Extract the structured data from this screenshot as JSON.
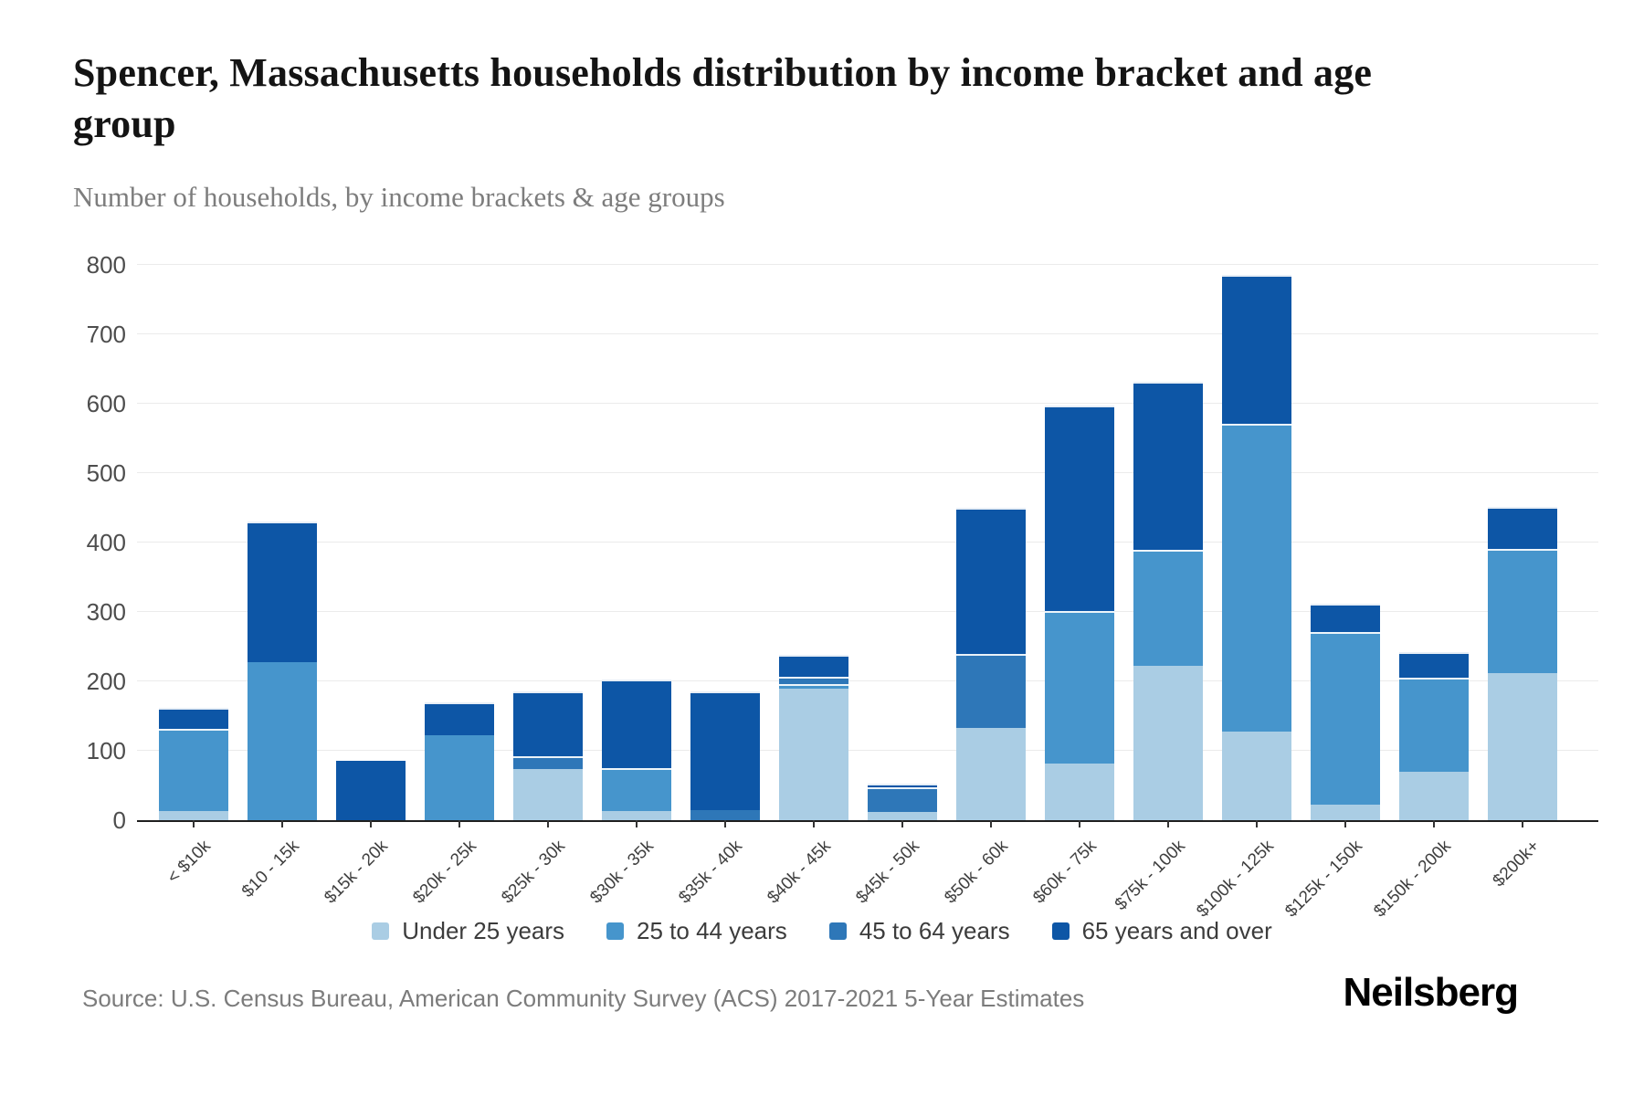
{
  "header": {
    "title": "Spencer, Massachusetts households distribution by income bracket and age group",
    "subtitle": "Number of households, by income brackets & age groups"
  },
  "chart_data": {
    "type": "bar",
    "stacked": true,
    "title": "Spencer, Massachusetts households distribution by income bracket and age group",
    "xlabel": "",
    "ylabel": "Number of households",
    "ylim": [
      0,
      800
    ],
    "ytick_step": 100,
    "yticks": [
      0,
      100,
      200,
      300,
      400,
      500,
      600,
      700,
      800
    ],
    "grid": true,
    "legend_position": "bottom",
    "categories": [
      "< $10k",
      "$10 - 15k",
      "$15k - 20k",
      "$20k - 25k",
      "$25k - 30k",
      "$30k - 35k",
      "$35k - 40k",
      "$40k - 45k",
      "$45k - 50k",
      "$50k - 60k",
      "$60k - 75k",
      "$75k - 100k",
      "$100k - 125k",
      "$125k - 150k",
      "$150k - 200k",
      "$200k+"
    ],
    "series": [
      {
        "name": "Under 25 years",
        "color": "#aacde4",
        "values": [
          13,
          0,
          0,
          0,
          74,
          13,
          0,
          189,
          12,
          133,
          82,
          222,
          127,
          23,
          70,
          212
        ]
      },
      {
        "name": "25 to 44 years",
        "color": "#4695cc",
        "values": [
          118,
          227,
          0,
          122,
          0,
          62,
          0,
          7,
          0,
          0,
          220,
          168,
          444,
          248,
          135,
          179
        ]
      },
      {
        "name": "45 to 64 years",
        "color": "#2e77b8",
        "values": [
          0,
          0,
          0,
          0,
          18,
          0,
          15,
          11,
          36,
          107,
          0,
          0,
          0,
          0,
          0,
          0
        ]
      },
      {
        "name": "65 years and over",
        "color": "#0d56a6",
        "values": [
          31,
          203,
          85,
          48,
          93,
          128,
          170,
          31,
          5,
          210,
          296,
          242,
          214,
          41,
          37,
          61
        ]
      }
    ],
    "totals": [
      162,
      430,
      85,
      170,
      185,
      203,
      185,
      238,
      53,
      450,
      598,
      632,
      785,
      312,
      242,
      452
    ]
  },
  "footer": {
    "source": "Source: U.S. Census Bureau, American Community Survey (ACS) 2017-2021 5-Year Estimates",
    "brand": "Neilsberg"
  }
}
